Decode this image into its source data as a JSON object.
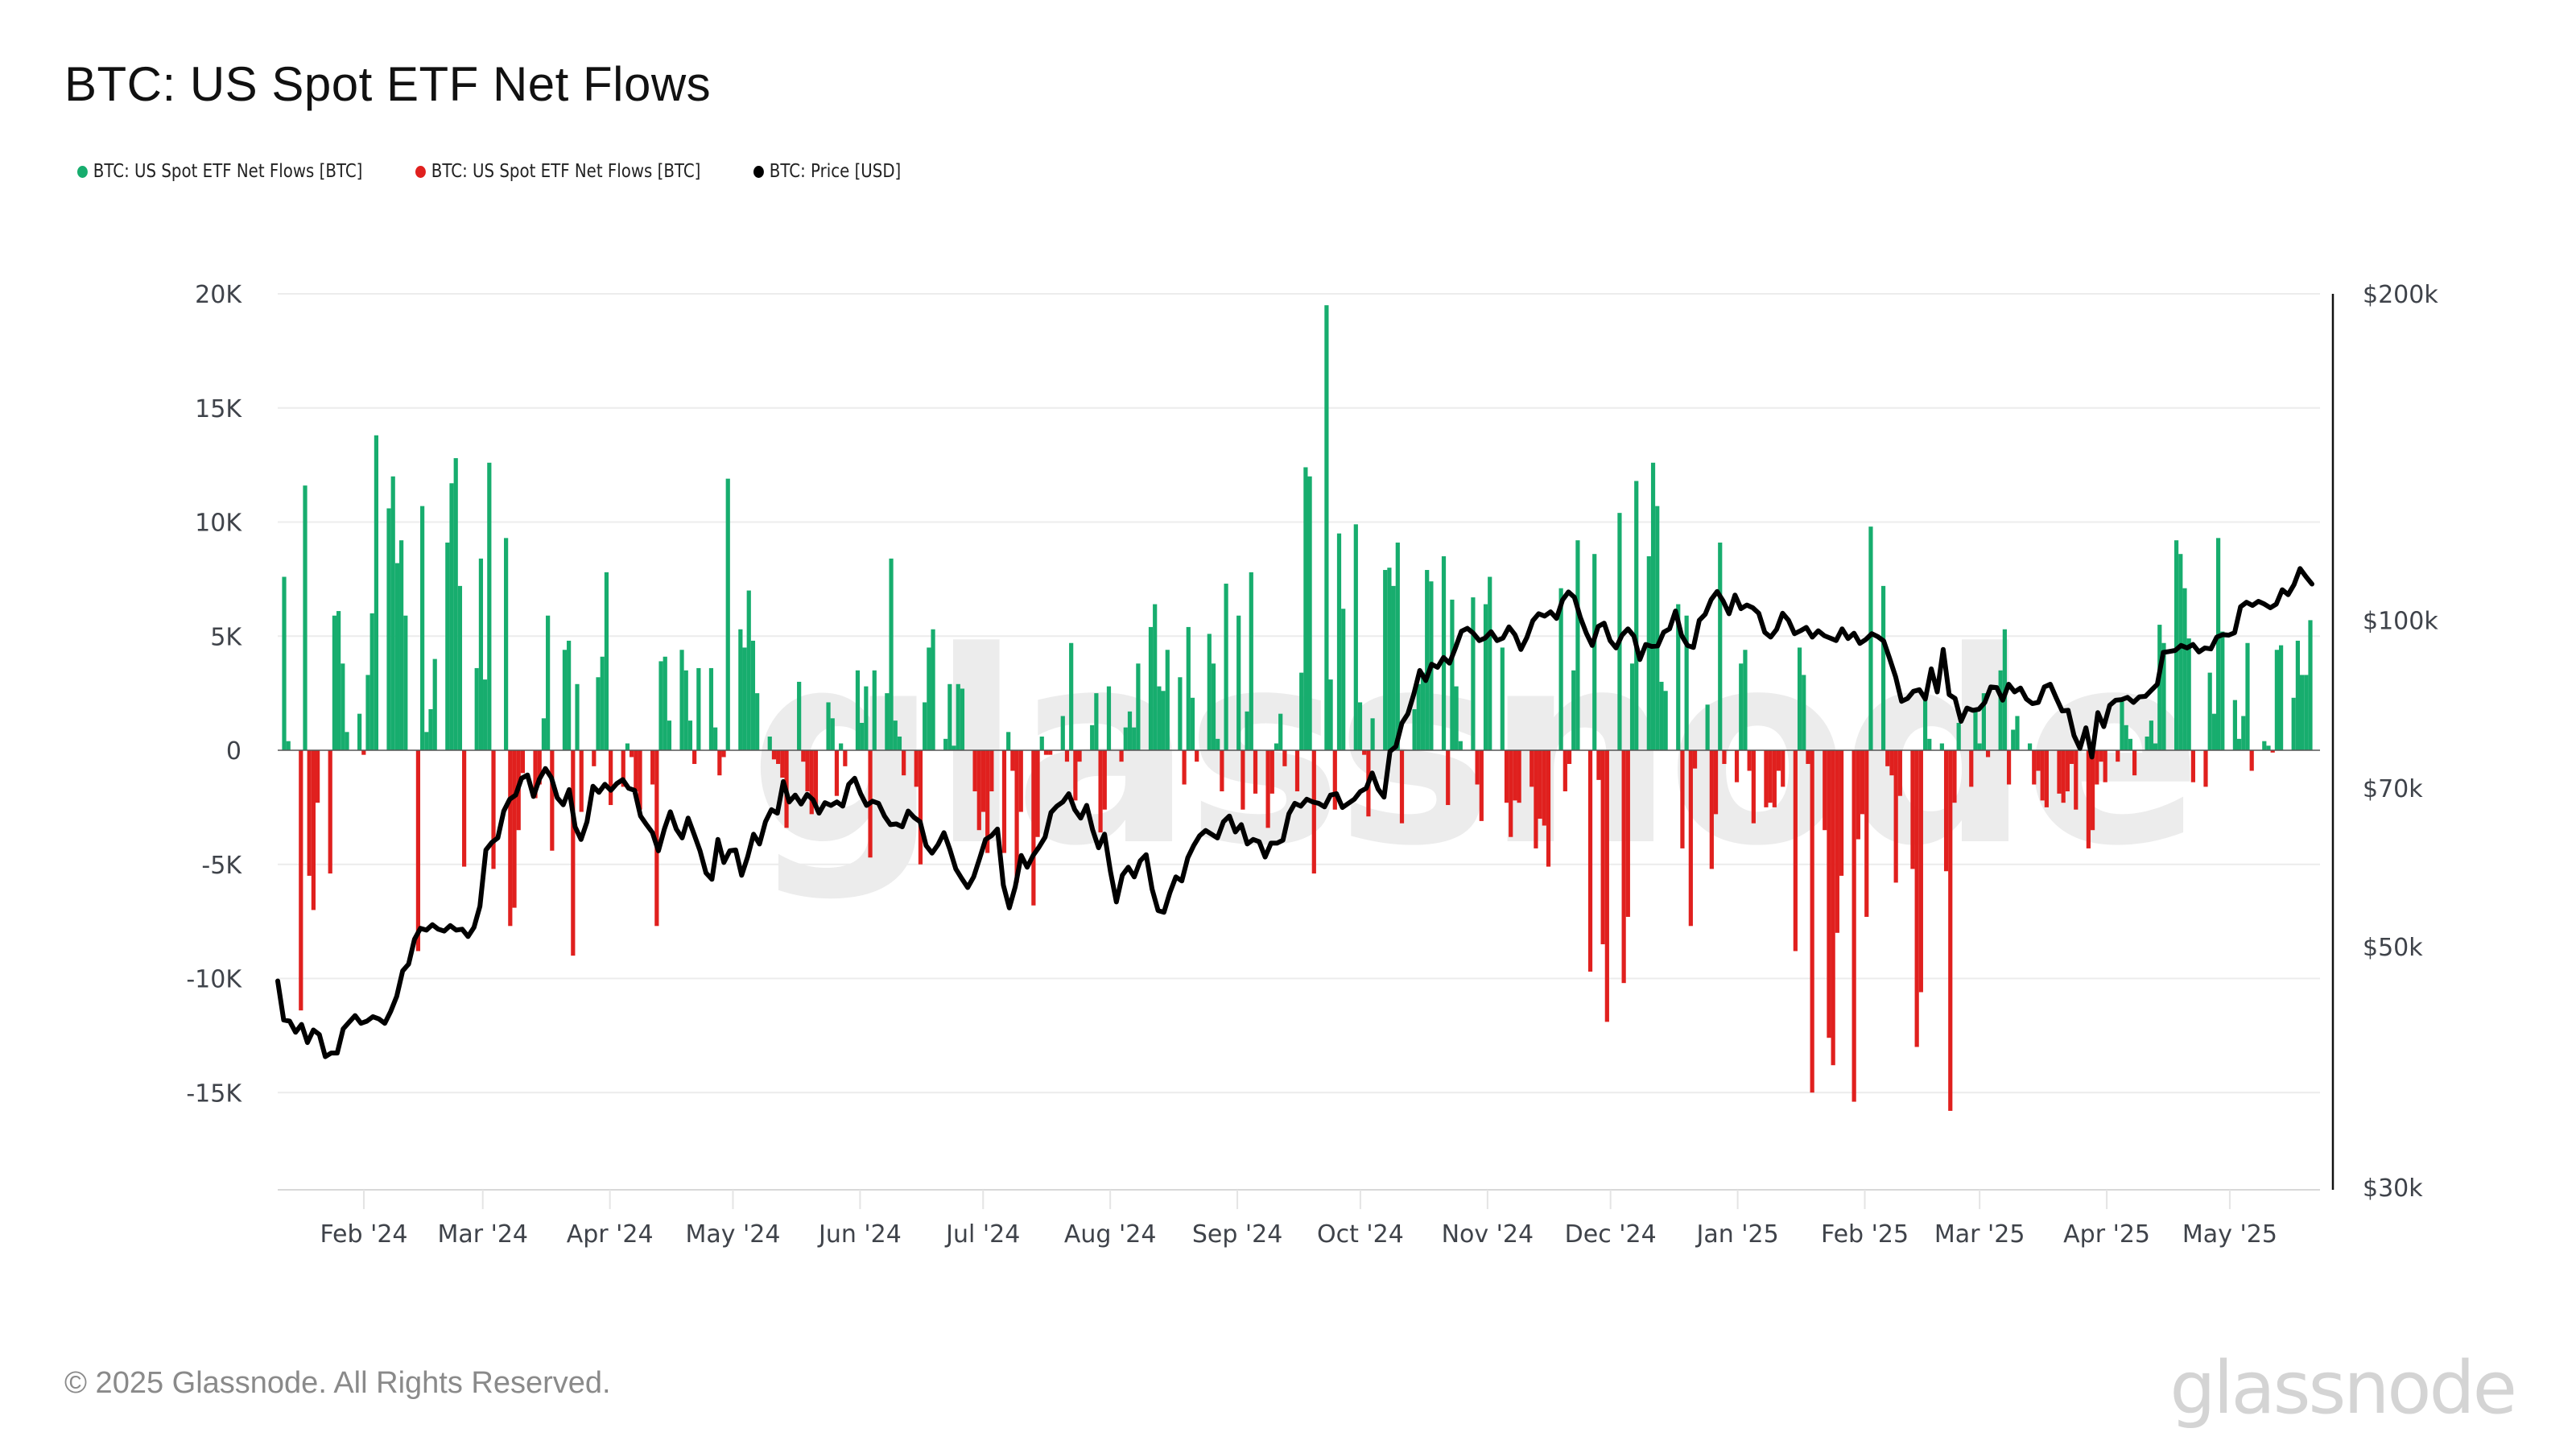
{
  "header": {
    "title": "BTC: US Spot ETF Net Flows"
  },
  "legend": [
    {
      "label": "BTC: US Spot ETF Net Flows [BTC]",
      "color": "#17ad6e"
    },
    {
      "label": "BTC: US Spot ETF Net Flows [BTC]",
      "color": "#e0201e"
    },
    {
      "label": "BTC: Price [USD]",
      "color": "#000000"
    }
  ],
  "footer": {
    "copyright": "© 2025 Glassnode. All Rights Reserved.",
    "logo": "glassnode",
    "watermark": "glassnode"
  },
  "chart_data": {
    "type": "bar+line",
    "title": "BTC: US Spot ETF Net Flows",
    "x_start": "2024-01-11",
    "x_end": "2025-05-23",
    "x_ticks": [
      "Feb '24",
      "Mar '24",
      "Apr '24",
      "May '24",
      "Jun '24",
      "Jul '24",
      "Aug '24",
      "Sep '24",
      "Oct '24",
      "Nov '24",
      "Dec '24",
      "Jan '25",
      "Feb '25",
      "Mar '25",
      "Apr '25",
      "May '25"
    ],
    "x_tick_dates": [
      "2024-02-01",
      "2024-03-01",
      "2024-04-01",
      "2024-05-01",
      "2024-06-01",
      "2024-07-01",
      "2024-08-01",
      "2024-09-01",
      "2024-10-01",
      "2024-11-01",
      "2024-12-01",
      "2025-01-01",
      "2025-02-01",
      "2025-03-01",
      "2025-04-01",
      "2025-05-01"
    ],
    "y_left": {
      "label": "Net Flows [BTC]",
      "range": [
        -19000,
        20000
      ],
      "ticks": [
        20000,
        15000,
        10000,
        5000,
        0,
        -5000,
        -10000,
        -15000
      ],
      "tick_labels": [
        "20K",
        "15K",
        "10K",
        "5K",
        "0",
        "-5K",
        "-10K",
        "-15K"
      ]
    },
    "y_right": {
      "label": "Price [USD]",
      "scale": "log",
      "range": [
        30000,
        200000
      ],
      "ticks": [
        200000,
        100000,
        70000,
        50000,
        30000
      ],
      "tick_labels": [
        "$200k",
        "$100k",
        "$70k",
        "$50k",
        "$30k"
      ]
    },
    "colors": {
      "inflow": "#17ad6e",
      "outflow": "#e0201e",
      "price": "#000000",
      "grid": "#ececec"
    },
    "series": [
      {
        "name": "BTC: US Spot ETF Net Flows [BTC]",
        "unit": "K BTC per trading day",
        "values_k": [
          7.6,
          0.4,
          -11.4,
          11.6,
          -5.5,
          -7.0,
          -2.3,
          -5.4,
          5.9,
          6.1,
          3.8,
          0.8,
          1.6,
          -0.2,
          3.3,
          6.0,
          13.8,
          10.6,
          12.0,
          8.2,
          9.2,
          5.9,
          -8.8,
          10.7,
          0.8,
          1.8,
          4.0,
          9.1,
          11.7,
          12.8,
          7.2,
          -5.1,
          3.6,
          8.4,
          3.1,
          12.6,
          -5.2,
          9.3,
          -7.7,
          -6.9,
          -3.5,
          -1.0,
          -2.1,
          -1.5,
          1.4,
          5.9,
          -4.4,
          4.4,
          4.8,
          -9.0,
          2.9,
          -2.7,
          -0.7,
          3.2,
          4.1,
          7.8,
          -2.4,
          -1.6,
          0.3,
          -0.3,
          -1.8,
          -2.6,
          -1.5,
          -7.7,
          3.9,
          4.1,
          1.3,
          4.4,
          3.5,
          1.3,
          -0.6,
          3.6,
          3.6,
          1.0,
          -1.1,
          -0.3,
          11.9,
          5.3,
          4.5,
          7.0,
          4.8,
          2.5,
          0.6,
          -0.4,
          -0.6,
          -1.2,
          -3.4,
          3.0,
          -0.5,
          -1.8,
          -2.8,
          -2.4,
          2.1,
          1.4,
          -2.0,
          0.3,
          -0.7,
          3.5,
          1.2,
          2.8,
          -4.7,
          3.5,
          2.5,
          8.4,
          1.3,
          0.6,
          -1.1,
          -1.6,
          -5.0,
          2.1,
          4.5,
          5.3,
          0.5,
          2.9,
          0.2,
          2.9,
          2.7,
          -1.8,
          -3.5,
          -2.7,
          -4.5,
          -1.8,
          -4.5,
          0.8,
          -0.9,
          -5.8,
          -2.7,
          -6.8,
          -3.8,
          0.6,
          -0.2,
          -0.2,
          1.5,
          -0.5,
          4.7,
          -2.2,
          -0.5,
          1.1,
          2.5,
          -3.6,
          -2.6,
          2.8,
          -0.5,
          1.0,
          1.7,
          1.0,
          3.8,
          5.4,
          6.4,
          2.8,
          2.6,
          4.4,
          3.2,
          -1.5,
          5.4,
          2.3,
          -0.5,
          5.1,
          3.8,
          0.5,
          -1.8,
          7.3,
          5.9,
          -2.6,
          1.7,
          7.8,
          -1.9,
          -3.4,
          -1.9,
          0.3,
          1.6,
          -0.7,
          -1.8,
          3.4,
          12.4,
          12.0,
          -5.4,
          19.5,
          3.1,
          -2.6,
          9.5,
          6.2,
          9.9,
          2.1,
          -0.2,
          -2.9,
          1.4,
          7.9,
          8.0,
          7.2,
          9.1,
          -3.2,
          1.8,
          2.9,
          3.4,
          7.9,
          7.4,
          8.5,
          -2.4,
          6.6,
          2.8,
          0.4,
          6.7,
          -1.5,
          -3.1,
          6.4,
          7.6,
          4.5,
          -2.3,
          -3.8,
          -2.2,
          -2.3,
          -1.6,
          -4.3,
          -3.0,
          -3.3,
          -5.1,
          7.1,
          -1.8,
          -0.6,
          3.5,
          9.2,
          -9.7,
          8.6,
          -1.3,
          -8.5,
          -11.9,
          10.4,
          -10.2,
          -7.3,
          3.8,
          11.8,
          8.5,
          12.6,
          10.7,
          3.0,
          2.6,
          6.4,
          -4.3,
          5.9,
          -7.7,
          -0.8,
          2.0,
          -5.2,
          -2.8,
          9.1,
          -0.6,
          -1.4,
          3.8,
          4.4,
          -0.9,
          -3.2,
          -2.5,
          -2.3,
          -2.5,
          -0.9,
          -1.6,
          -8.8,
          4.5,
          3.3,
          -0.6,
          -15.0,
          -3.5,
          -12.6,
          -13.8,
          -8.0,
          -5.5,
          -15.4,
          -3.9,
          -2.8,
          -7.3,
          9.8,
          7.2,
          -0.7,
          -1.1,
          -5.8,
          -2.0,
          -5.2,
          -13.0,
          -10.6,
          2.3,
          0.5,
          0.3,
          -5.3,
          -15.8,
          -2.3,
          1.2,
          -1.6,
          1.8,
          0.3,
          2.5,
          -0.3,
          3.5,
          5.3,
          -1.5,
          0.9,
          1.5,
          0.3,
          -1.5,
          -0.9,
          -2.2,
          -2.5,
          -1.9,
          -2.3,
          -1.8,
          -0.6,
          -2.6,
          -4.3,
          -3.5,
          -1.5,
          -0.5,
          -1.4,
          -0.5,
          2.3,
          1.1,
          0.5,
          -1.1,
          0.6,
          1.3,
          0.3,
          5.5,
          4.7,
          9.2,
          8.6,
          7.1,
          4.9,
          -1.4,
          -1.6,
          3.4,
          1.6,
          9.3,
          5.2,
          2.2,
          0.5,
          1.5,
          4.7,
          -0.9,
          0.4,
          0.2,
          -0.1,
          4.4,
          4.6,
          2.3,
          4.8,
          3.3,
          3.3,
          5.7
        ]
      },
      {
        "name": "BTC: Price [USD]",
        "unit": "USD, sampled ~every 2.5 days",
        "values": [
          46500,
          42800,
          42700,
          41700,
          42400,
          40800,
          41900,
          41500,
          39600,
          39900,
          39900,
          42000,
          42600,
          43200,
          42500,
          42700,
          43100,
          42900,
          42500,
          43600,
          45000,
          47500,
          48200,
          50800,
          52000,
          51800,
          52400,
          51900,
          51700,
          52300,
          51800,
          51900,
          51100,
          52100,
          54500,
          61400,
          62400,
          63000,
          66700,
          68400,
          69000,
          71500,
          72000,
          68800,
          71400,
          73000,
          71600,
          68600,
          67600,
          69800,
          64500,
          62800,
          65200,
          70300,
          69400,
          70600,
          69700,
          70700,
          71300,
          70000,
          69700,
          66000,
          64800,
          63700,
          61300,
          64200,
          66600,
          64200,
          63000,
          65700,
          63500,
          61300,
          58500,
          57700,
          62800,
          59800,
          61300,
          61400,
          58200,
          60500,
          63500,
          62200,
          65200,
          66900,
          66400,
          71000,
          68000,
          69000,
          67700,
          69100,
          68300,
          66400,
          67900,
          67500,
          68000,
          67400,
          70600,
          71500,
          69200,
          67500,
          68100,
          67800,
          66000,
          64800,
          64900,
          64500,
          66700,
          65800,
          65200,
          62000,
          61000,
          62100,
          63700,
          61500,
          59000,
          57800,
          56700,
          58000,
          60300,
          62800,
          63300,
          64200,
          57000,
          54300,
          56800,
          60700,
          59200,
          60700,
          61800,
          63100,
          66500,
          67400,
          68000,
          69200,
          66900,
          65700,
          67500,
          64100,
          61700,
          63500,
          58700,
          55000,
          58200,
          59200,
          58000,
          60000,
          60800,
          56500,
          54000,
          53800,
          56100,
          58000,
          57500,
          60400,
          62000,
          63300,
          64000,
          63500,
          63000,
          65200,
          66000,
          63800,
          64800,
          62200,
          62800,
          62500,
          60500,
          62300,
          62300,
          62700,
          66300,
          67800,
          67400,
          68400,
          68000,
          67800,
          67300,
          69000,
          69200,
          67200,
          67800,
          68400,
          69500,
          70000,
          72300,
          69900,
          68700,
          75700,
          76500,
          80400,
          82000,
          85500,
          89900,
          88000,
          91100,
          90500,
          92400,
          91300,
          94300,
          97700,
          98300,
          97300,
          95800,
          96300,
          97600,
          95800,
          96300,
          98600,
          97000,
          94000,
          96400,
          99900,
          101400,
          100900,
          101800,
          100400,
          104400,
          106200,
          105000,
          100600,
          97300,
          94800,
          98700,
          99400,
          95800,
          94300,
          96900,
          98200,
          96700,
          92000,
          95000,
          94600,
          94700,
          97500,
          98200,
          102000,
          96900,
          94800,
          94400,
          100000,
          101300,
          104500,
          106300,
          104200,
          101400,
          105500,
          102500,
          103300,
          102700,
          101500,
          97500,
          96500,
          98100,
          101500,
          100000,
          97200,
          97800,
          98500,
          96500,
          97800,
          96800,
          96300,
          95800,
          98200,
          96200,
          97300,
          95200,
          96000,
          97200,
          96600,
          95700,
          92200,
          88700,
          84200,
          84700,
          86000,
          86300,
          84600,
          90200,
          85900,
          94000,
          85400,
          84700,
          80700,
          83000,
          82600,
          82800,
          84000,
          86800,
          86700,
          84400,
          87300,
          85900,
          86600,
          84600,
          83800,
          84000,
          86800,
          87300,
          84800,
          82500,
          82600,
          78300,
          76200,
          79600,
          74800,
          82200,
          79800,
          83500,
          84400,
          84500,
          84900,
          84000,
          85000,
          85100,
          86200,
          87300,
          93400,
          93600,
          93800,
          94800,
          94300,
          95000,
          93500,
          94300,
          94100,
          96500,
          97000,
          96900,
          97400,
          102900,
          103900,
          103200,
          104100,
          103500,
          102700,
          103500,
          106700,
          105600,
          107900,
          111600,
          109700,
          108000
        ]
      }
    ],
    "grid": true,
    "legend_position": "top-left"
  }
}
